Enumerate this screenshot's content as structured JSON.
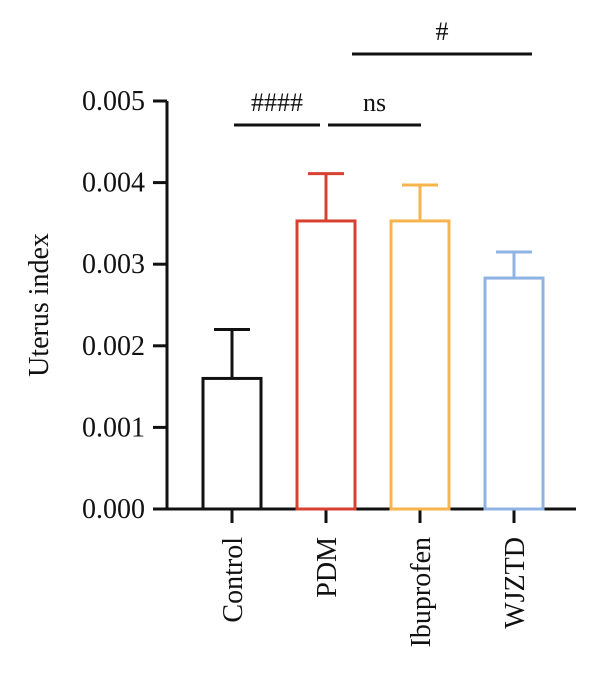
{
  "chart_data": {
    "type": "bar",
    "title": "",
    "xlabel": "",
    "ylabel": "Uterus index",
    "ylim": [
      0,
      0.005
    ],
    "yticks": [
      "0.000",
      "0.001",
      "0.002",
      "0.003",
      "0.004",
      "0.005"
    ],
    "categories": [
      "Control",
      "PDM",
      "Ibuprofen",
      "WJZTD"
    ],
    "values": [
      0.0016,
      0.00353,
      0.00353,
      0.00283
    ],
    "errors": [
      0.0006,
      0.00058,
      0.00044,
      0.00032
    ],
    "colors": [
      "#111111",
      "#d8412f",
      "#f7b44e",
      "#8fb4e3"
    ],
    "grid": false,
    "legend": "none",
    "significance": [
      {
        "label": "####",
        "from": "Control",
        "to": "PDM"
      },
      {
        "label": "ns",
        "from": "PDM",
        "to": "Ibuprofen"
      },
      {
        "label": "#",
        "from": "PDM",
        "to": "WJZTD"
      }
    ]
  }
}
